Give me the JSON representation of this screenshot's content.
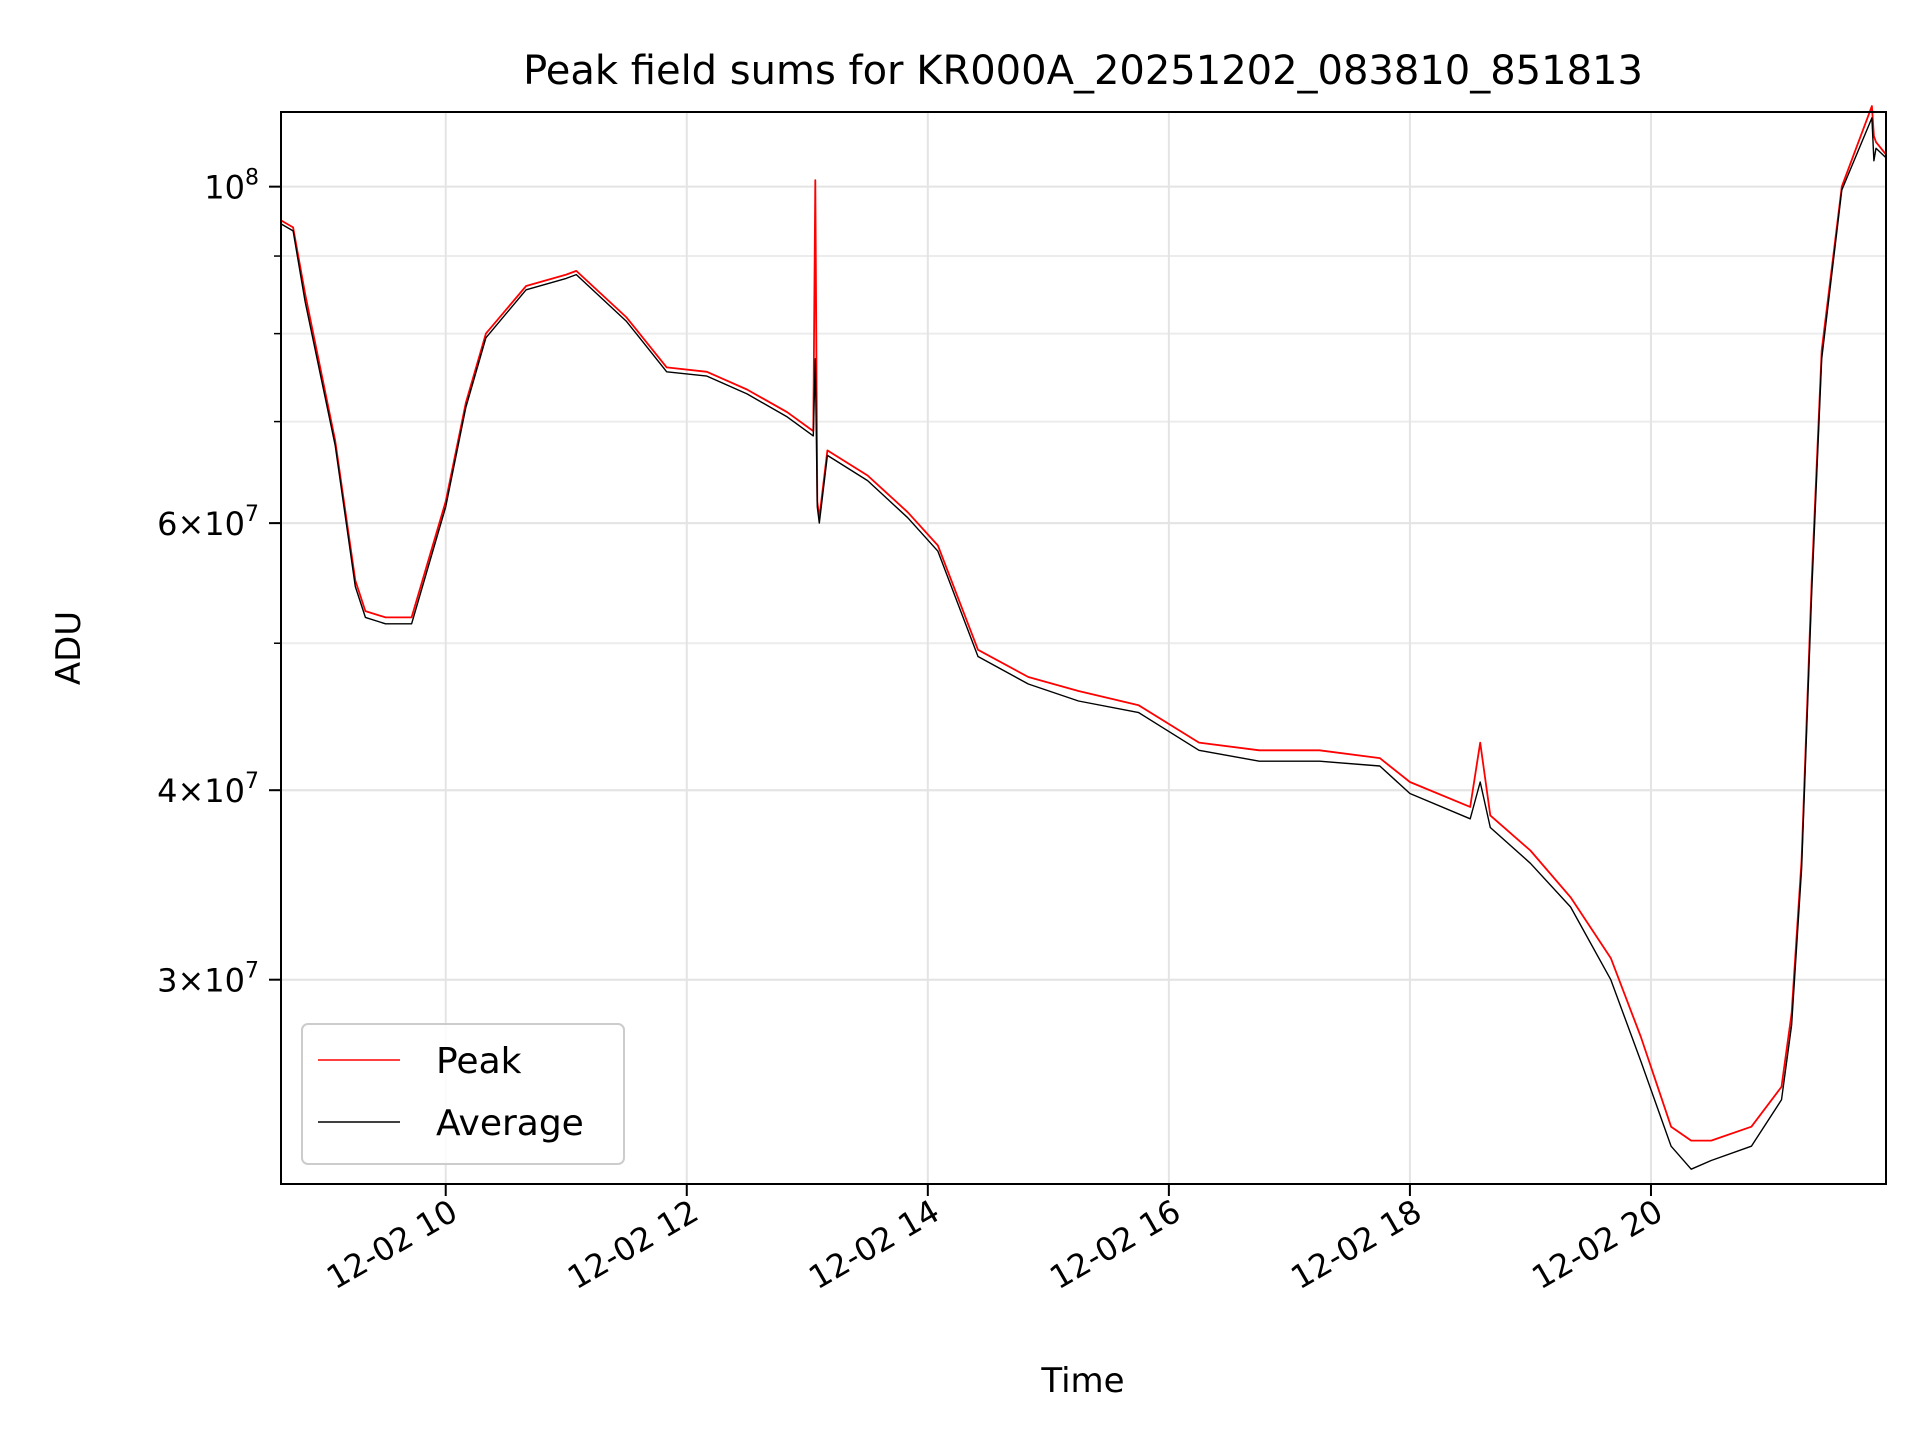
{
  "chart_data": {
    "type": "line",
    "title": "Peak field sums for KR000A_20251202_083810_851813",
    "xlabel": "Time",
    "ylabel": "ADU",
    "y_scale": "log",
    "xlim": [
      "2025-12-02T08:38",
      "2025-12-02T21:57"
    ],
    "ylim": [
      22000000,
      112000000
    ],
    "x_ticks": [
      {
        "t": "2025-12-02T10:00",
        "label": "12-02 10"
      },
      {
        "t": "2025-12-02T12:00",
        "label": "12-02 12"
      },
      {
        "t": "2025-12-02T14:00",
        "label": "12-02 14"
      },
      {
        "t": "2025-12-02T16:00",
        "label": "12-02 16"
      },
      {
        "t": "2025-12-02T18:00",
        "label": "12-02 18"
      },
      {
        "t": "2025-12-02T20:00",
        "label": "12-02 20"
      }
    ],
    "y_ticks": [
      {
        "value": 100000000,
        "mantissa": "",
        "exp": "8"
      },
      {
        "value": 60000000,
        "mantissa": "6",
        "exp": "7"
      },
      {
        "value": 40000000,
        "mantissa": "4",
        "exp": "7"
      },
      {
        "value": 30000000,
        "mantissa": "3",
        "exp": "7"
      }
    ],
    "grid": true,
    "legend_position": "lower-left",
    "series": [
      {
        "name": "Peak",
        "color": "#ff0000",
        "x": [
          "2025-12-02T08:38",
          "2025-12-02T08:44",
          "2025-12-02T08:50",
          "2025-12-02T09:05",
          "2025-12-02T09:15",
          "2025-12-02T09:20",
          "2025-12-02T09:30",
          "2025-12-02T09:43",
          "2025-12-02T10:00",
          "2025-12-02T10:10",
          "2025-12-02T10:20",
          "2025-12-02T10:40",
          "2025-12-02T11:00",
          "2025-12-02T11:05",
          "2025-12-02T11:30",
          "2025-12-02T11:50",
          "2025-12-02T12:10",
          "2025-12-02T12:30",
          "2025-12-02T12:50",
          "2025-12-02T13:03",
          "2025-12-02T13:04",
          "2025-12-02T13:05",
          "2025-12-02T13:06",
          "2025-12-02T13:10",
          "2025-12-02T13:30",
          "2025-12-02T13:50",
          "2025-12-02T14:05",
          "2025-12-02T14:25",
          "2025-12-02T14:50",
          "2025-12-02T15:15",
          "2025-12-02T15:45",
          "2025-12-02T16:15",
          "2025-12-02T16:45",
          "2025-12-02T17:15",
          "2025-12-02T17:45",
          "2025-12-02T18:00",
          "2025-12-02T18:30",
          "2025-12-02T18:35",
          "2025-12-02T18:40",
          "2025-12-02T19:00",
          "2025-12-02T19:20",
          "2025-12-02T19:40",
          "2025-12-02T19:55",
          "2025-12-02T20:10",
          "2025-12-02T20:20",
          "2025-12-02T20:30",
          "2025-12-02T20:50",
          "2025-12-02T21:05",
          "2025-12-02T21:10",
          "2025-12-02T21:15",
          "2025-12-02T21:20",
          "2025-12-02T21:25",
          "2025-12-02T21:35",
          "2025-12-02T21:50",
          "2025-12-02T21:51",
          "2025-12-02T21:52",
          "2025-12-02T21:57"
        ],
        "y": [
          95000000,
          94000000,
          85000000,
          68000000,
          55000000,
          52500000,
          52000000,
          52000000,
          62000000,
          72000000,
          80000000,
          86000000,
          87500000,
          88000000,
          82000000,
          76000000,
          75500000,
          73500000,
          71000000,
          69000000,
          101000000,
          62000000,
          60500000,
          67000000,
          64500000,
          61000000,
          58000000,
          49500000,
          47500000,
          46500000,
          45500000,
          43000000,
          42500000,
          42500000,
          42000000,
          40500000,
          39000000,
          43000000,
          38500000,
          36500000,
          34000000,
          31000000,
          27500000,
          24000000,
          23500000,
          23500000,
          24000000,
          25500000,
          28500000,
          36000000,
          55000000,
          78000000,
          100000000,
          113000000,
          108000000,
          107000000,
          105000000
        ]
      },
      {
        "name": "Average",
        "color": "#000000",
        "x": [
          "2025-12-02T08:38",
          "2025-12-02T08:44",
          "2025-12-02T08:50",
          "2025-12-02T09:05",
          "2025-12-02T09:15",
          "2025-12-02T09:20",
          "2025-12-02T09:30",
          "2025-12-02T09:43",
          "2025-12-02T10:00",
          "2025-12-02T10:10",
          "2025-12-02T10:20",
          "2025-12-02T10:40",
          "2025-12-02T11:00",
          "2025-12-02T11:05",
          "2025-12-02T11:30",
          "2025-12-02T11:50",
          "2025-12-02T12:10",
          "2025-12-02T12:30",
          "2025-12-02T12:50",
          "2025-12-02T13:03",
          "2025-12-02T13:04",
          "2025-12-02T13:05",
          "2025-12-02T13:06",
          "2025-12-02T13:10",
          "2025-12-02T13:30",
          "2025-12-02T13:50",
          "2025-12-02T14:05",
          "2025-12-02T14:25",
          "2025-12-02T14:50",
          "2025-12-02T15:15",
          "2025-12-02T15:45",
          "2025-12-02T16:15",
          "2025-12-02T16:45",
          "2025-12-02T17:15",
          "2025-12-02T17:45",
          "2025-12-02T18:00",
          "2025-12-02T18:30",
          "2025-12-02T18:35",
          "2025-12-02T18:40",
          "2025-12-02T19:00",
          "2025-12-02T19:20",
          "2025-12-02T19:40",
          "2025-12-02T19:55",
          "2025-12-02T20:10",
          "2025-12-02T20:20",
          "2025-12-02T20:30",
          "2025-12-02T20:50",
          "2025-12-02T21:05",
          "2025-12-02T21:10",
          "2025-12-02T21:15",
          "2025-12-02T21:20",
          "2025-12-02T21:25",
          "2025-12-02T21:35",
          "2025-12-02T21:50",
          "2025-12-02T21:51",
          "2025-12-02T21:52",
          "2025-12-02T21:57"
        ],
        "y": [
          94500000,
          93500000,
          84000000,
          67500000,
          54500000,
          52000000,
          51500000,
          51500000,
          61500000,
          71500000,
          79500000,
          85500000,
          87000000,
          87500000,
          81500000,
          75500000,
          75000000,
          73000000,
          70500000,
          68500000,
          77000000,
          61500000,
          60000000,
          66500000,
          64000000,
          60500000,
          57500000,
          49000000,
          47000000,
          45800000,
          45000000,
          42500000,
          41800000,
          41800000,
          41500000,
          39800000,
          38300000,
          40500000,
          37800000,
          35800000,
          33500000,
          30000000,
          26500000,
          23300000,
          22500000,
          22800000,
          23300000,
          25000000,
          28000000,
          35500000,
          54000000,
          77000000,
          99500000,
          111000000,
          104000000,
          106000000,
          104500000
        ]
      }
    ]
  }
}
